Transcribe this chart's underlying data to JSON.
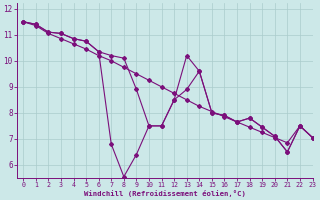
{
  "line1_x": [
    0,
    1,
    2,
    3,
    4,
    5,
    6,
    7,
    8,
    9,
    10,
    11,
    12,
    13,
    14,
    15,
    16,
    17,
    18,
    19,
    20,
    21,
    22,
    23
  ],
  "line1_y": [
    11.5,
    11.4,
    11.1,
    11.05,
    10.85,
    10.75,
    10.35,
    6.8,
    5.55,
    6.4,
    7.5,
    7.5,
    8.5,
    10.2,
    9.6,
    8.0,
    7.9,
    7.65,
    7.8,
    7.45,
    7.1,
    6.5,
    7.5,
    7.05
  ],
  "line2_x": [
    0,
    1,
    2,
    3,
    4,
    5,
    6,
    7,
    8,
    9,
    10,
    11,
    12,
    13,
    14,
    15,
    16,
    17,
    18,
    19,
    20,
    21,
    22,
    23
  ],
  "line2_y": [
    11.5,
    11.4,
    11.1,
    11.05,
    10.85,
    10.75,
    10.35,
    10.2,
    10.1,
    8.9,
    7.5,
    7.5,
    8.5,
    8.9,
    9.6,
    8.0,
    7.9,
    7.65,
    7.8,
    7.45,
    7.1,
    6.5,
    7.5,
    7.05
  ],
  "line3_x": [
    0,
    1,
    2,
    3,
    4,
    5,
    6,
    7,
    8,
    9,
    10,
    11,
    12,
    13,
    14,
    15,
    16,
    17,
    18,
    19,
    20,
    21,
    22,
    23
  ],
  "line3_y": [
    11.5,
    11.35,
    11.05,
    10.85,
    10.65,
    10.45,
    10.2,
    10.0,
    9.75,
    9.5,
    9.25,
    9.0,
    8.75,
    8.5,
    8.25,
    8.05,
    7.85,
    7.65,
    7.45,
    7.25,
    7.05,
    6.85,
    7.5,
    7.05
  ],
  "color": "#7b0f7b",
  "bg_color": "#cce8e8",
  "grid_color": "#aacccc",
  "axis_color": "#7b0f7b",
  "xlabel": "Windchill (Refroidissement éolien,°C)",
  "xlim": [
    -0.5,
    23
  ],
  "ylim": [
    5.5,
    12.2
  ],
  "yticks": [
    6,
    7,
    8,
    9,
    10,
    11,
    12
  ],
  "xticks": [
    0,
    1,
    2,
    3,
    4,
    5,
    6,
    7,
    8,
    9,
    10,
    11,
    12,
    13,
    14,
    15,
    16,
    17,
    18,
    19,
    20,
    21,
    22,
    23
  ]
}
